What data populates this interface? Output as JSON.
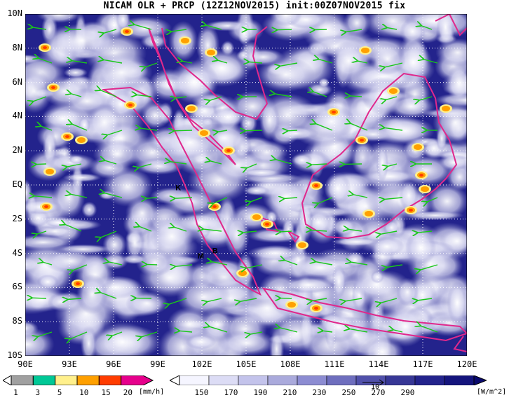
{
  "title": "NICAM OLR + PRCP (12Z12NOV2015) init:00Z07NOV2015 fix",
  "map": {
    "lon_range": [
      90,
      120
    ],
    "lat_range": [
      -10,
      10
    ],
    "lat_labels": [
      "10N",
      "8N",
      "6N",
      "4N",
      "2N",
      "EQ",
      "2S",
      "4S",
      "6S",
      "8S",
      "10S"
    ],
    "lon_labels": [
      "90E",
      "93E",
      "96E",
      "99E",
      "102E",
      "105E",
      "108E",
      "111E",
      "114E",
      "117E",
      "120E"
    ],
    "station_markers": [
      {
        "label": "K",
        "lon": 100.2,
        "lat": -0.3
      },
      {
        "label": "M",
        "lon": 101.7,
        "lat": -4.3
      },
      {
        "label": "B",
        "lon": 102.7,
        "lat": -4.0
      }
    ],
    "colors": {
      "ocean_olr": "#23238c",
      "cloud": "#ffffff",
      "coast": "#e0288c",
      "wind": "#19c819",
      "grid": "#ffffff"
    }
  },
  "precip_bar": {
    "unit": "[mm/h]",
    "ticks": [
      "1",
      "3",
      "5",
      "10",
      "15",
      "20"
    ],
    "colors": [
      "#a0a0a0",
      "#00c896",
      "#fff08c",
      "#ffa000",
      "#ff3c00",
      "#e6008c"
    ]
  },
  "olr_bar": {
    "unit": "[W/m^2]",
    "ticks": [
      "150",
      "170",
      "190",
      "210",
      "230",
      "250",
      "270",
      "290"
    ],
    "colors": [
      "#f5f5ff",
      "#dcdcf5",
      "#c3c3eb",
      "#aaaadc",
      "#8c8cd2",
      "#6e6ebe",
      "#5050aa",
      "#373796",
      "#23238c",
      "#14147d"
    ],
    "vector_ref": "10"
  }
}
